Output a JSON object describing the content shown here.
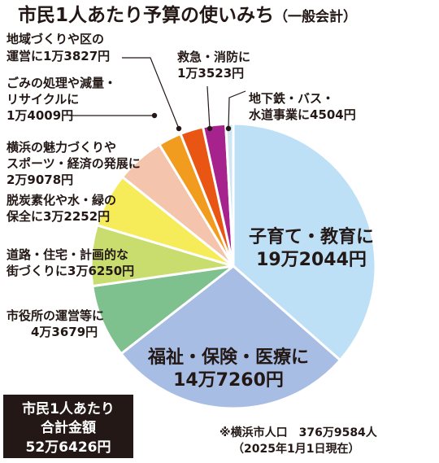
{
  "chart_data": {
    "type": "pie",
    "title": "市民1人あたり予算の使いみち",
    "subtitle": "（一般会計）",
    "unit": "円",
    "slices": [
      {
        "name": "子育て・教育",
        "value": 192044,
        "label_lines": [
          "子育て・教育に",
          "19万2044円"
        ],
        "color": "#bde0f6"
      },
      {
        "name": "福祉・保険・医療",
        "value": 147260,
        "label_lines": [
          "福祉・保険・医療に",
          "14万7260円"
        ],
        "color": "#a7bde4"
      },
      {
        "name": "市役所の運営等",
        "value": 43679,
        "label_lines": [
          "市役所の運営等に",
          "4万3679円"
        ],
        "color": "#7ec08e"
      },
      {
        "name": "道路・住宅・計画的な街づくり",
        "value": 36250,
        "label_lines": [
          "道路・住宅・計画的な",
          "街づくりに3万6250円"
        ],
        "color": "#c8dd6e"
      },
      {
        "name": "脱炭素化や水・緑の保全",
        "value": 32252,
        "label_lines": [
          "脱炭素化や水・緑の",
          "保全に3万2252円"
        ],
        "color": "#f6ec5a"
      },
      {
        "name": "横浜の魅力づくりやスポーツ・経済の発展",
        "value": 29078,
        "label_lines": [
          "横浜の魅力づくりや",
          "スポーツ・経済の発展に",
          "2万9078円"
        ],
        "color": "#f5c4ac"
      },
      {
        "name": "ごみの処理や減量・リサイクル",
        "value": 14009,
        "label_lines": [
          "ごみの処理や減量・",
          "リサイクルに",
          "1万4009円"
        ],
        "color": "#f29c1f"
      },
      {
        "name": "地域づくりや区の運営",
        "value": 13827,
        "label_lines": [
          "地域づくりや区の",
          "運営に1万3827円"
        ],
        "color": "#e95513"
      },
      {
        "name": "救急・消防",
        "value": 13523,
        "label_lines": [
          "救急・消防に",
          "1万3523円"
        ],
        "color": "#a6238e"
      },
      {
        "name": "地下鉄・バス・水道事業",
        "value": 4504,
        "label_lines": [
          "地下鉄・バス・",
          "水道事業に4504円"
        ],
        "color": "#cfe6f0"
      }
    ],
    "total": {
      "lines": [
        "市民1人あたり",
        "合計金額",
        "52万6426円"
      ]
    },
    "note": {
      "lines": [
        "※横浜市人口　376万9584人",
        "（2025年1月1日現在）"
      ]
    }
  }
}
